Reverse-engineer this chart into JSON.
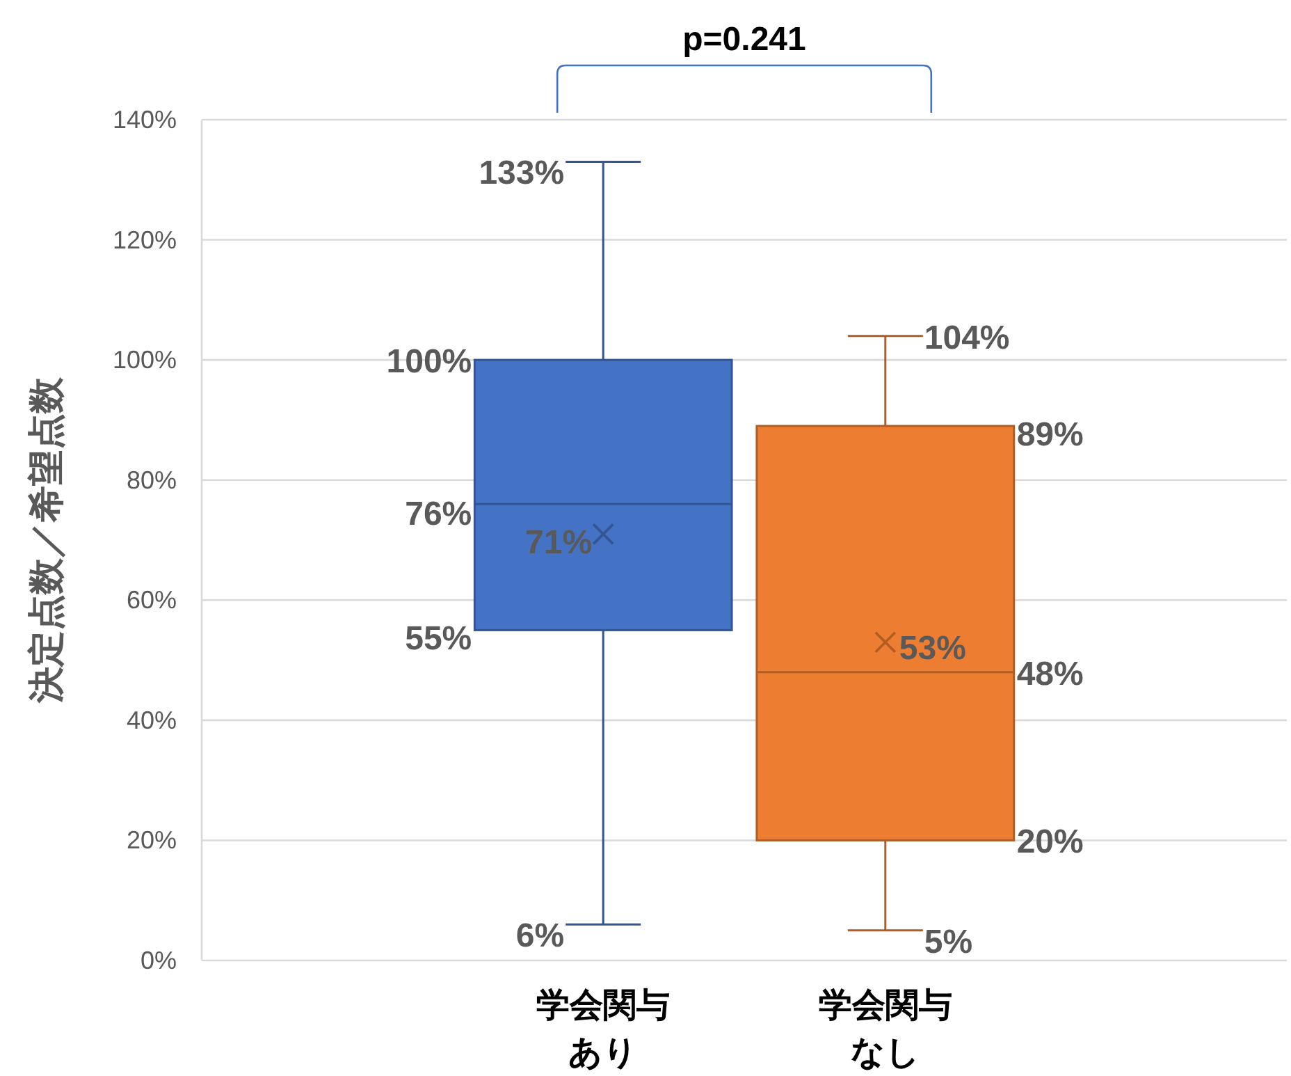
{
  "chart_data": {
    "type": "box",
    "ylabel": "決定点数／希望点数",
    "categories": [
      "学会関与あり",
      "学会関与なし"
    ],
    "colors": [
      "#4472c4",
      "#ed7d31"
    ],
    "boxes": [
      {
        "low": 6,
        "q1": 55,
        "median": 76,
        "q3": 100,
        "high": 133,
        "mean": 71
      },
      {
        "low": 5,
        "q1": 20,
        "median": 48,
        "q3": 89,
        "high": 104,
        "mean": 53
      }
    ],
    "value_labels": [
      [
        "6%",
        "55%",
        "76%",
        "100%",
        "133%",
        "71%"
      ],
      [
        "5%",
        "20%",
        "48%",
        "89%",
        "104%",
        "53%"
      ]
    ],
    "annotations": [
      "p=0.241"
    ],
    "ylim": [
      0,
      140
    ],
    "yticks": [
      {
        "value": 0,
        "label": "0%"
      },
      {
        "value": 20,
        "label": "20%"
      },
      {
        "value": 40,
        "label": "40%"
      },
      {
        "value": 60,
        "label": "60%"
      },
      {
        "value": 80,
        "label": "80%"
      },
      {
        "value": 100,
        "label": "100%"
      },
      {
        "value": 120,
        "label": "120%"
      },
      {
        "value": 140,
        "label": "140%"
      }
    ],
    "grid": "y",
    "marker": "cross"
  }
}
